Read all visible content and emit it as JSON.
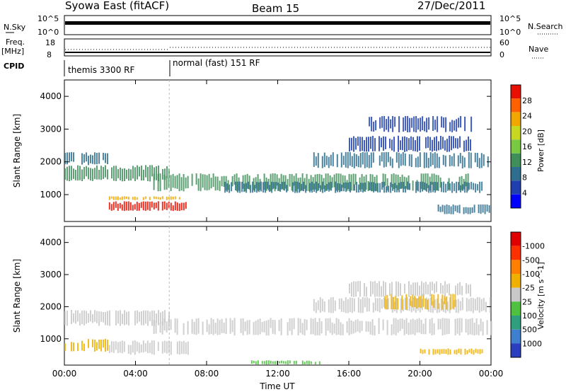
{
  "header": {
    "title": "Syowa East (fitACF)",
    "beam": "Beam 15",
    "date": "27/Dec/2011"
  },
  "top_panels": {
    "nsky_label": "N.Sky",
    "nsearch_label": "N.Search",
    "nsky_ticks": [
      "10^5",
      "10^0"
    ],
    "nsearch_ticks": [
      "10^5",
      "10^0"
    ],
    "freq_label": "Freq.",
    "freq_unit": "[MHz]",
    "freq_ticks": [
      "18",
      "8"
    ],
    "nave_label": "Nave",
    "nave_ticks": [
      "60",
      "0"
    ],
    "cpid_label": "CPID",
    "cpid_modes": [
      "themis 3300 RF",
      "normal (fast) 151 RF"
    ],
    "mode_change_hour": 5.9
  },
  "chart_data": [
    {
      "type": "heatmap",
      "name": "power",
      "ylabel": "Slant Range [km]",
      "xlabel": "Time UT",
      "xlim": [
        0,
        24
      ],
      "ylim": [
        180,
        4500
      ],
      "x_ticks": [
        "00:00",
        "04:00",
        "08:00",
        "12:00",
        "16:00",
        "20:00",
        "00:00"
      ],
      "y_ticks": [
        1000,
        2000,
        3000,
        4000
      ],
      "colorbar_label": "Power [dB]",
      "colorbar_ticks": [
        4,
        8,
        12,
        16,
        20,
        24,
        28
      ],
      "colorbar_colors": [
        "#0000ff",
        "#1f3fb0",
        "#2e6e8e",
        "#3f8f5a",
        "#7ac943",
        "#c8d820",
        "#f0a800",
        "#ff6000",
        "#e81000"
      ],
      "bands": [
        {
          "x": [
            0.0,
            5.9
          ],
          "y": [
            1400,
            1900
          ],
          "level": 3
        },
        {
          "x": [
            0.0,
            2.5
          ],
          "y": [
            1900,
            2300
          ],
          "level": 2
        },
        {
          "x": [
            2.5,
            7.0
          ],
          "y": [
            500,
            800
          ],
          "level": 8
        },
        {
          "x": [
            2.5,
            6.5
          ],
          "y": [
            830,
            950
          ],
          "level": 6
        },
        {
          "x": [
            5.0,
            23.0
          ],
          "y": [
            1100,
            1650
          ],
          "level": 3
        },
        {
          "x": [
            9.0,
            24.0
          ],
          "y": [
            1050,
            1400
          ],
          "level": 2
        },
        {
          "x": [
            14.0,
            24.0
          ],
          "y": [
            1800,
            2300
          ],
          "level": 2
        },
        {
          "x": [
            16.0,
            23.0
          ],
          "y": [
            2300,
            2800
          ],
          "level": 1
        },
        {
          "x": [
            17.0,
            23.0
          ],
          "y": [
            2900,
            3400
          ],
          "level": 1
        },
        {
          "x": [
            21.0,
            24.0
          ],
          "y": [
            400,
            700
          ],
          "level": 2
        }
      ]
    },
    {
      "type": "heatmap",
      "name": "velocity",
      "ylabel": "Slant Range [km]",
      "xlabel": "Time UT",
      "xlim": [
        0,
        24
      ],
      "ylim": [
        180,
        4500
      ],
      "x_ticks": [
        "00:00",
        "04:00",
        "08:00",
        "12:00",
        "16:00",
        "20:00",
        "00:00"
      ],
      "y_ticks": [
        1000,
        2000,
        3000,
        4000
      ],
      "colorbar_label": "Velocity [m s^-1]",
      "colorbar_ticks": [
        "1000",
        "500",
        "100",
        "25",
        "-25",
        "-100",
        "-500",
        "-1000"
      ],
      "colorbar_colors": [
        "#2a3fc0",
        "#3f7fd0",
        "#2f9f7f",
        "#4fc040",
        "#c8c8c8",
        "#f0b000",
        "#ff7f00",
        "#ff3000",
        "#e00000"
      ],
      "bands": [
        {
          "x": [
            0.0,
            5.9
          ],
          "y": [
            1400,
            1900
          ],
          "level": 4
        },
        {
          "x": [
            2.5,
            7.0
          ],
          "y": [
            500,
            950
          ],
          "level": 4
        },
        {
          "x": [
            5.0,
            24.0
          ],
          "y": [
            1100,
            1650
          ],
          "level": 4
        },
        {
          "x": [
            14.0,
            24.0
          ],
          "y": [
            1800,
            2300
          ],
          "level": 4
        },
        {
          "x": [
            18.0,
            22.0
          ],
          "y": [
            1900,
            2400
          ],
          "level": 5
        },
        {
          "x": [
            16.0,
            23.0
          ],
          "y": [
            2300,
            2800
          ],
          "level": 4
        },
        {
          "x": [
            20.0,
            23.5
          ],
          "y": [
            500,
            700
          ],
          "level": 5
        },
        {
          "x": [
            10.5,
            14.5
          ],
          "y": [
            200,
            330
          ],
          "level": 3
        },
        {
          "x": [
            0.0,
            2.5
          ],
          "y": [
            600,
            1000
          ],
          "level": 5
        }
      ]
    }
  ]
}
